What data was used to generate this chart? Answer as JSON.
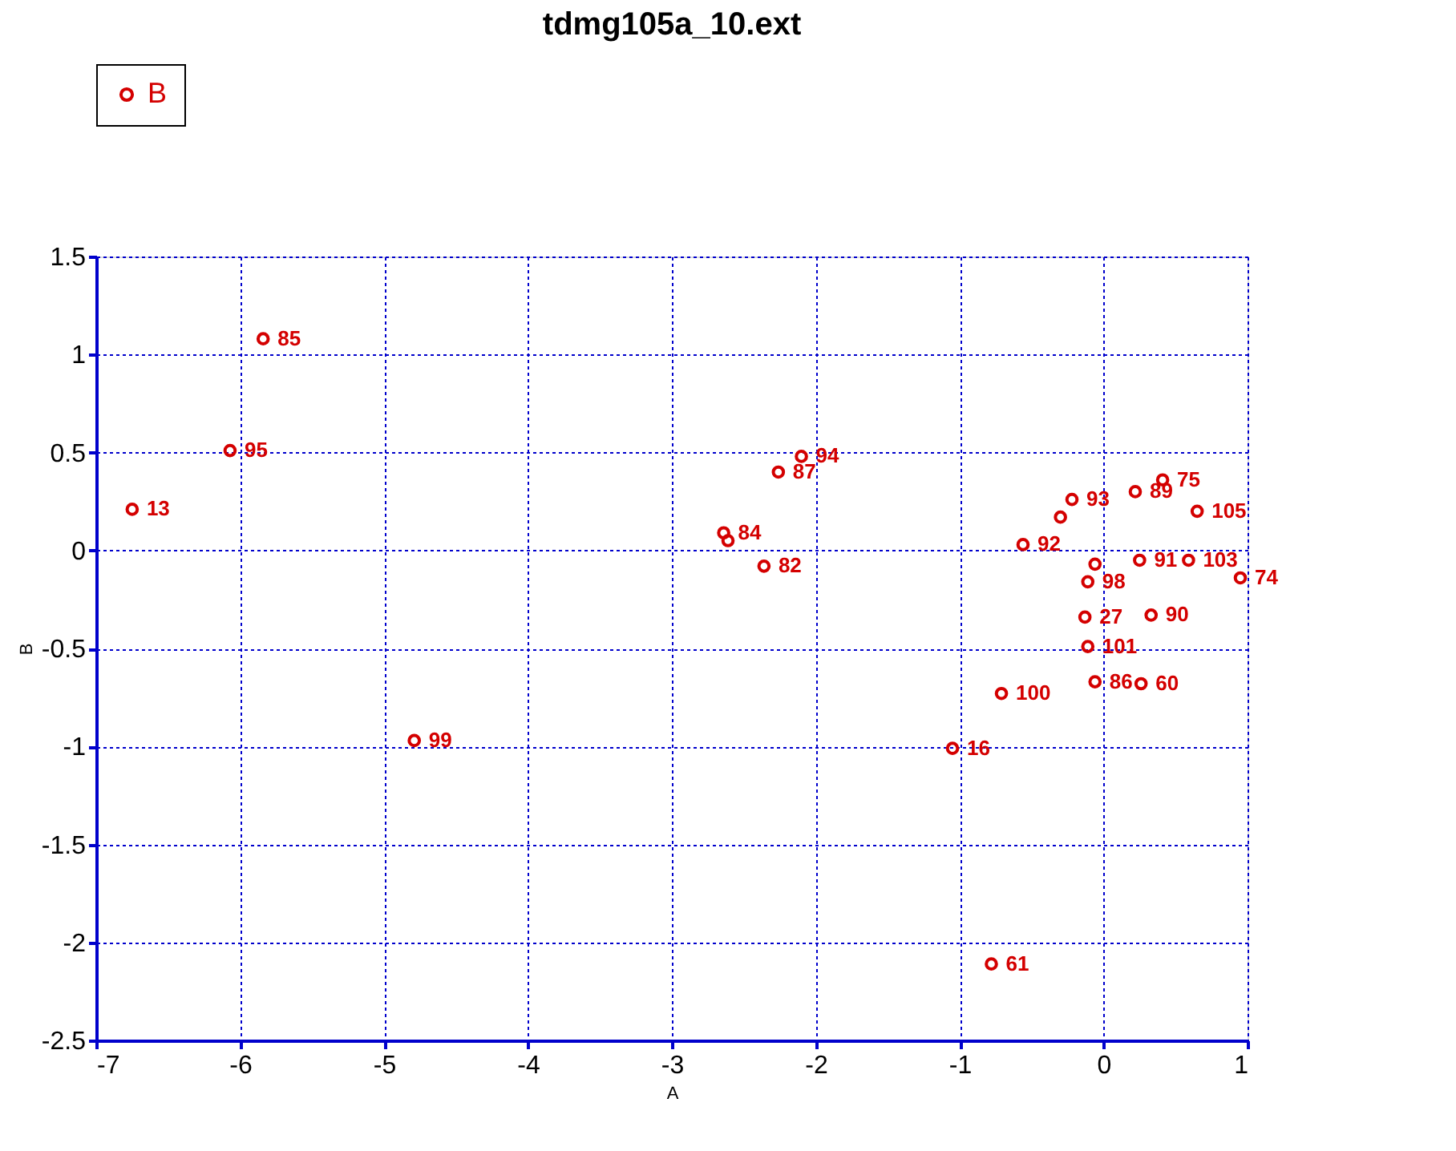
{
  "chart_data": {
    "type": "scatter",
    "title": "tdmg105a_10.ext",
    "xlabel": "A",
    "ylabel": "B",
    "series": [
      {
        "name": "B",
        "color": "#d40000",
        "x": [
          -5.84,
          -6.07,
          -6.75,
          -2.26,
          -2.1,
          -2.64,
          -2.61,
          -2.36,
          -4.79,
          -1.05,
          -0.78,
          -0.56,
          -0.22,
          -0.3,
          -0.11,
          -0.06,
          -0.13,
          -0.11,
          -0.71,
          0.22,
          0.41,
          0.65,
          0.25,
          0.59,
          0.95,
          0.26,
          -0.06,
          0.33
        ],
        "values": [
          1.08,
          0.51,
          0.21,
          0.4,
          0.48,
          0.09,
          0.05,
          -0.08,
          -0.97,
          -1.01,
          -2.11,
          0.03,
          0.26,
          0.17,
          -0.16,
          -0.07,
          -0.34,
          -0.49,
          -0.73,
          0.3,
          0.36,
          0.2,
          -0.05,
          -0.05,
          -0.14,
          -0.68,
          -0.67,
          -0.33
        ]
      }
    ],
    "annotations": [
      {
        "text": "85",
        "x": -5.84,
        "y": 1.08
      },
      {
        "text": "95",
        "x": -6.07,
        "y": 0.51
      },
      {
        "text": "13",
        "x": -6.75,
        "y": 0.21
      },
      {
        "text": "87",
        "x": -2.26,
        "y": 0.4
      },
      {
        "text": "94",
        "x": -2.1,
        "y": 0.48
      },
      {
        "text": "84",
        "x": -2.64,
        "y": 0.09
      },
      {
        "text": "82",
        "x": -2.36,
        "y": -0.08
      },
      {
        "text": "99",
        "x": -4.79,
        "y": -0.97
      },
      {
        "text": "16",
        "x": -1.05,
        "y": -1.01
      },
      {
        "text": "61",
        "x": -0.78,
        "y": -2.11
      },
      {
        "text": "92",
        "x": -0.56,
        "y": 0.03
      },
      {
        "text": "93",
        "x": -0.22,
        "y": 0.26
      },
      {
        "text": "98",
        "x": -0.11,
        "y": -0.16
      },
      {
        "text": "27",
        "x": -0.13,
        "y": -0.34
      },
      {
        "text": "101",
        "x": -0.11,
        "y": -0.49
      },
      {
        "text": "100",
        "x": -0.71,
        "y": -0.73
      },
      {
        "text": "89",
        "x": 0.22,
        "y": 0.3
      },
      {
        "text": "75",
        "x": 0.41,
        "y": 0.36
      },
      {
        "text": "105",
        "x": 0.65,
        "y": 0.2
      },
      {
        "text": "91",
        "x": 0.25,
        "y": -0.05
      },
      {
        "text": "103",
        "x": 0.59,
        "y": -0.05
      },
      {
        "text": "74",
        "x": 0.95,
        "y": -0.14
      },
      {
        "text": "60",
        "x": 0.26,
        "y": -0.68
      },
      {
        "text": "86",
        "x": -0.06,
        "y": -0.67
      },
      {
        "text": "90",
        "x": 0.33,
        "y": -0.33
      }
    ],
    "xlim": [
      -7,
      1
    ],
    "xticks": [
      -7,
      -6,
      -5,
      -4,
      -3,
      -2,
      -1,
      0,
      1
    ],
    "ylim": [
      -2.5,
      1.5
    ],
    "yticks": [
      -2.5,
      -2,
      -1.5,
      -1,
      -0.5,
      0,
      0.5,
      1,
      1.5
    ],
    "grid": true,
    "legend": "top left",
    "marker": "circle"
  }
}
